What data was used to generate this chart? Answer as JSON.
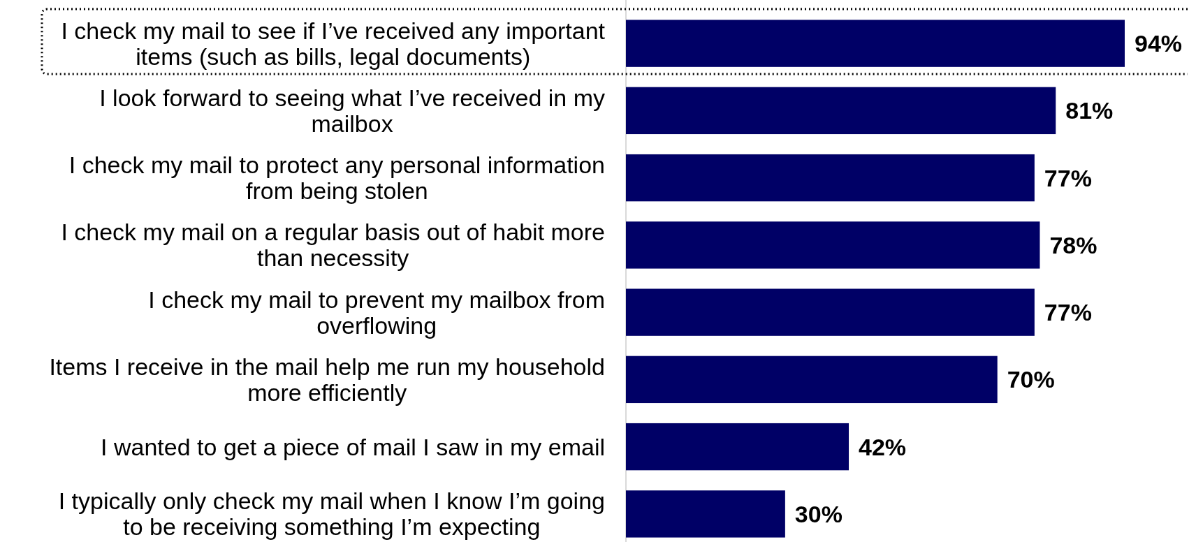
{
  "chart_data": {
    "type": "bar",
    "orientation": "horizontal",
    "categories": [
      "I check my mail to see if I’ve received any important items (such as bills, legal documents)",
      "I look forward to seeing what I’ve received in my mailbox",
      "I check my mail to protect any personal information from being stolen",
      "I check my mail on a regular basis out of habit more than necessity",
      "I check my mail to prevent my mailbox from overflowing",
      "Items I receive in the mail help me run my household more efficiently",
      "I wanted to get a piece of mail I saw in my email",
      "I typically only check my mail when I know I’m going to be receiving something I’m expecting"
    ],
    "values": [
      94,
      81,
      77,
      78,
      77,
      70,
      42,
      30
    ],
    "value_labels": [
      "94%",
      "81%",
      "77%",
      "78%",
      "77%",
      "70%",
      "42%",
      "30%"
    ],
    "color": "#000066"
  }
}
